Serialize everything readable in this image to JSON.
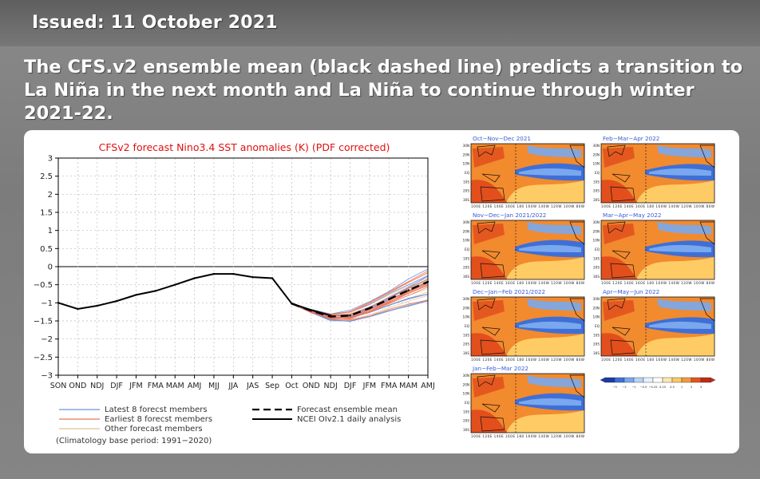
{
  "header": {
    "issued": "Issued: 11 October 2021"
  },
  "headline": "The CFS.v2 ensemble mean (black dashed line) predicts a transition to La Niña in the next month and La Niña to continue through winter 2021-22.",
  "chart_data": {
    "type": "line",
    "title": "CFSv2 forecast Nino3.4 SST anomalies (K) (PDF corrected)",
    "categories": [
      "SON",
      "OND",
      "NDJ",
      "DJF",
      "JFM",
      "FMA",
      "MAM",
      "AMJ",
      "MJJ",
      "JJA",
      "JAS",
      "Sep",
      "Oct",
      "OND",
      "NDJ",
      "DJF",
      "JFM",
      "FMA",
      "MAM",
      "AMJ"
    ],
    "ylim": [
      -3,
      3
    ],
    "yticks": [
      "3",
      "2.5",
      "2",
      "1.5",
      "1",
      "0.5",
      "0",
      "−0.5",
      "−1",
      "−1.5",
      "−2",
      "−2.5",
      "−3"
    ],
    "series": [
      {
        "name": "NCEI OIv2.1 daily analysis",
        "values": [
          -1.0,
          -1.17,
          -1.08,
          -0.95,
          -0.78,
          -0.67,
          -0.5,
          -0.32,
          -0.2,
          -0.2,
          -0.29,
          -0.32,
          -1.02,
          -1.2,
          -1.35,
          null,
          null,
          null,
          null,
          null
        ]
      },
      {
        "name": "Forecast ensemble mean",
        "values": [
          null,
          null,
          null,
          null,
          null,
          null,
          null,
          null,
          null,
          null,
          null,
          null,
          -1.02,
          -1.22,
          -1.38,
          -1.35,
          -1.15,
          -0.9,
          -0.65,
          -0.42
        ]
      }
    ],
    "legend": {
      "latest": "Latest 8 forecst members",
      "earliest": "Earliest 8 forecst members",
      "other": "Other forecast members",
      "mean": "Forecast ensemble mean",
      "analysis": "NCEI OIv2.1 daily analysis",
      "base": "(Climatology base period: 1991−2020)"
    },
    "colors": {
      "latest": "#6d8fd9",
      "earliest": "#ef7356",
      "other": "#e3c295",
      "mean": "#000000",
      "analysis": "#000000"
    }
  },
  "maps": {
    "titles": [
      "Oct−Nov−Dec 2021",
      "Nov−Dec−Jan 2021/2022",
      "Dec−Jan−Feb 2021/2022",
      "Jan−Feb−Mar 2022",
      "Feb−Mar−Apr 2022",
      "Mar−Apr−May 2022",
      "Apr−May−Jun 2022"
    ],
    "lat_labels": [
      "30N",
      "20N",
      "10N",
      "EQ",
      "10S",
      "20S",
      "30S"
    ],
    "lon_labels": "100E 120E 140E 160E 180 160W 140W 120W 100W 80W",
    "colorbar_labels": [
      "−3",
      "−2",
      "−1",
      "−0.5",
      "−0.25",
      "0.25",
      "0.5",
      "1",
      "2",
      "3"
    ],
    "colorbar_colors": [
      "#1c3aa8",
      "#3f6fd6",
      "#79a8ee",
      "#b5d3f7",
      "#e6f1fc",
      "#ffffff",
      "#fbe7b0",
      "#f7c96a",
      "#f29a3a",
      "#e5541c",
      "#c22a12"
    ]
  }
}
